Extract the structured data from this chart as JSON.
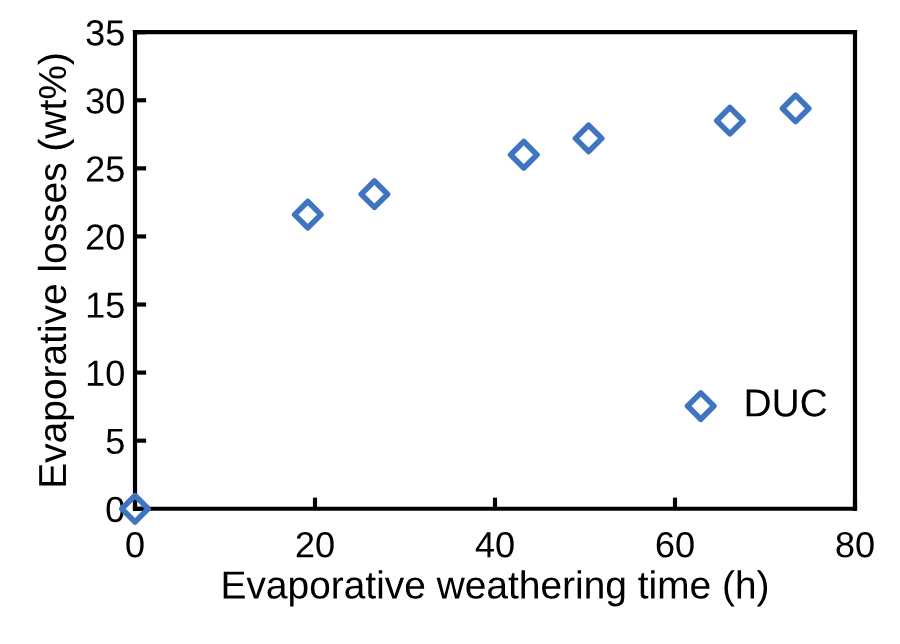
{
  "chart_data": {
    "type": "scatter",
    "xlabel": "Evaporative weathering time (h)",
    "ylabel": "Evaporative losses (wt%)",
    "x": [
      0,
      19.2,
      26.6,
      43.2,
      50.4,
      66.1,
      73.4
    ],
    "series": [
      {
        "name": "DUC",
        "color": "#3f74c0",
        "values": [
          0,
          21.6,
          23.1,
          26.0,
          27.2,
          28.5,
          29.4
        ]
      }
    ],
    "xlim": [
      0,
      80
    ],
    "xticks": [
      0,
      20,
      40,
      60,
      80
    ],
    "ylim": [
      0,
      35
    ],
    "yticks": [
      0,
      5,
      10,
      15,
      20,
      25,
      30,
      35
    ],
    "marker": "diamond",
    "grid": false,
    "legend": "bottom right"
  }
}
